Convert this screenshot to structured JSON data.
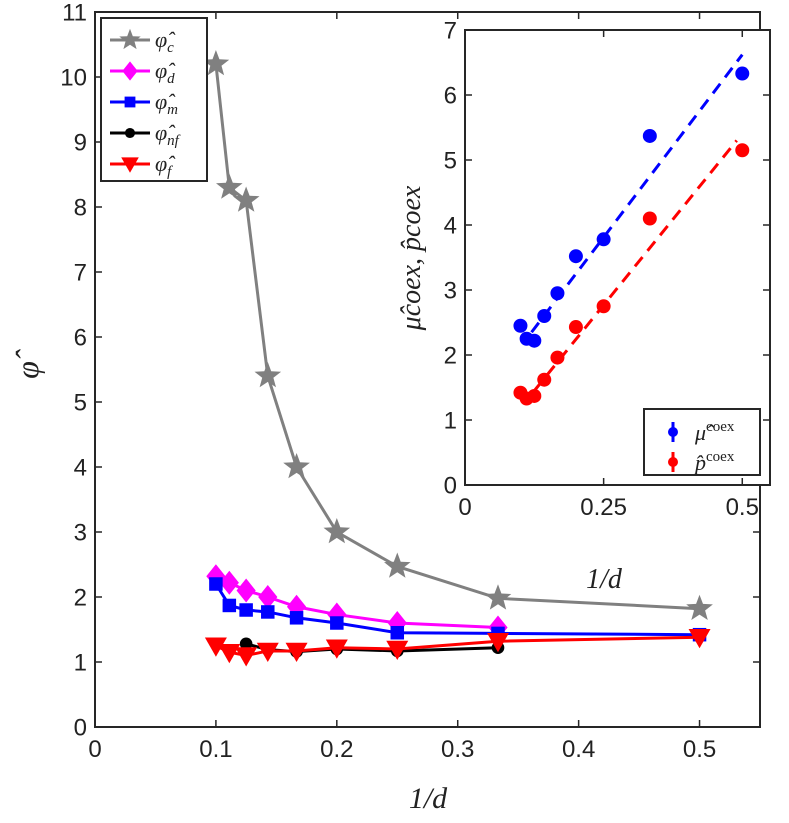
{
  "chart_data": [
    {
      "type": "line",
      "xlabel": "1/d",
      "ylabel": "φ̂",
      "xlim": [
        0,
        0.55
      ],
      "ylim": [
        0,
        11
      ],
      "xticks": [
        0,
        0.1,
        0.2,
        0.3,
        0.4,
        0.5
      ],
      "xtick_labels": [
        "0",
        "0.1",
        "0.2",
        "0.3",
        "0.4",
        "0.5"
      ],
      "yticks": [
        0,
        1,
        2,
        3,
        4,
        5,
        6,
        7,
        8,
        9,
        10,
        11
      ],
      "ytick_labels": [
        "0",
        "1",
        "2",
        "3",
        "4",
        "5",
        "6",
        "7",
        "8",
        "9",
        "10",
        "11"
      ],
      "grid": false,
      "legend_position": "top-left",
      "series": [
        {
          "name": "φ̂c",
          "sub": "c",
          "color": "#808080",
          "marker": "star",
          "x": [
            0.1,
            0.1111,
            0.125,
            0.1429,
            0.1667,
            0.2,
            0.25,
            0.3333,
            0.5
          ],
          "y": [
            10.2,
            8.3,
            8.1,
            5.4,
            4.0,
            3.0,
            2.47,
            1.98,
            1.82
          ]
        },
        {
          "name": "φ̂d",
          "sub": "d",
          "color": "#ff00ff",
          "marker": "diamond",
          "x": [
            0.1,
            0.1111,
            0.125,
            0.1429,
            0.1667,
            0.2,
            0.25,
            0.3333
          ],
          "y": [
            2.32,
            2.22,
            2.1,
            2.0,
            1.85,
            1.73,
            1.6,
            1.53
          ]
        },
        {
          "name": "φ̂m",
          "sub": "m",
          "color": "#0000ff",
          "marker": "square",
          "x": [
            0.1,
            0.1111,
            0.125,
            0.1429,
            0.1667,
            0.2,
            0.25,
            0.3333,
            0.5
          ],
          "y": [
            2.2,
            1.87,
            1.8,
            1.77,
            1.68,
            1.6,
            1.45,
            1.44,
            1.42
          ]
        },
        {
          "name": "φ̂nf",
          "sub": "nf",
          "color": "#000000",
          "marker": "circle",
          "x": [
            0.125,
            0.1429,
            0.1667,
            0.2,
            0.25,
            0.3333
          ],
          "y": [
            1.28,
            1.19,
            1.16,
            1.2,
            1.17,
            1.22
          ]
        },
        {
          "name": "φ̂f",
          "sub": "f",
          "color": "#ff0000",
          "marker": "triangle-down",
          "x": [
            0.1,
            0.1111,
            0.125,
            0.1429,
            0.1667,
            0.2,
            0.25,
            0.3333,
            0.5
          ],
          "y": [
            1.25,
            1.15,
            1.1,
            1.17,
            1.17,
            1.22,
            1.2,
            1.32,
            1.38
          ]
        }
      ]
    },
    {
      "type": "scatter",
      "inset": true,
      "xlabel": "1/d",
      "ylabel": "μ̂coex, p̂coex",
      "xlim": [
        0,
        0.55
      ],
      "ylim": [
        0,
        7
      ],
      "xticks": [
        0,
        0.25,
        0.5
      ],
      "xtick_labels": [
        "0",
        "0.25",
        "0.5"
      ],
      "yticks": [
        0,
        1,
        2,
        3,
        4,
        5,
        6,
        7
      ],
      "ytick_labels": [
        "0",
        "1",
        "2",
        "3",
        "4",
        "5",
        "6",
        "7"
      ],
      "grid": false,
      "legend_position": "bottom-right",
      "series": [
        {
          "name": "μ̂coex",
          "base": "μ̂",
          "sup": "coex",
          "color": "#0000ff",
          "marker": "circle",
          "x": [
            0.1,
            0.1111,
            0.125,
            0.1429,
            0.1667,
            0.2,
            0.25,
            0.3333,
            0.5
          ],
          "y": [
            2.45,
            2.25,
            2.22,
            2.6,
            2.95,
            3.52,
            3.78,
            5.37,
            6.33
          ],
          "fit": {
            "x": [
              0.12,
              0.5
            ],
            "y": [
              2.35,
              6.62
            ]
          }
        },
        {
          "name": "p̂coex",
          "base": "p̂",
          "sup": "coex",
          "color": "#ff0000",
          "marker": "circle",
          "x": [
            0.1,
            0.1111,
            0.125,
            0.1429,
            0.1667,
            0.2,
            0.25,
            0.3333,
            0.5
          ],
          "y": [
            1.42,
            1.33,
            1.37,
            1.62,
            1.96,
            2.43,
            2.75,
            4.1,
            5.15
          ],
          "fit": {
            "x": [
              0.125,
              0.49
            ],
            "y": [
              1.45,
              5.3
            ]
          }
        }
      ]
    }
  ]
}
